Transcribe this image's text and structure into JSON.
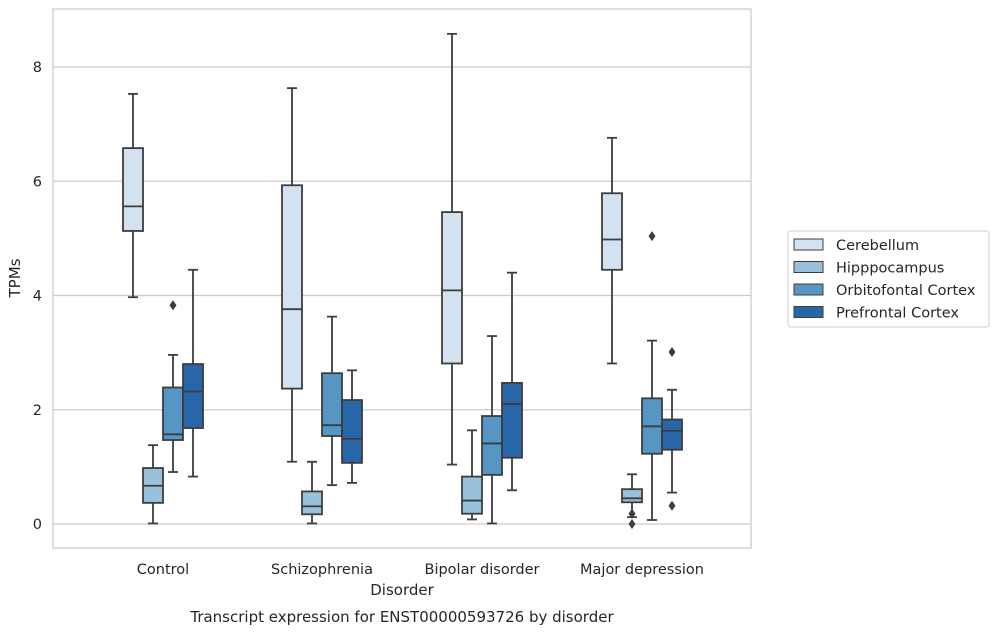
{
  "chart_data": {
    "type": "box",
    "title": "Transcript expression for ENST00000593726 by disorder",
    "xlabel": "Disorder",
    "ylabel": "TPMs",
    "ylim": [
      -0.4,
      9.1
    ],
    "yticks": [
      0,
      2,
      4,
      6,
      8
    ],
    "grid": "horizontal",
    "legend_position": "right",
    "categories": [
      "Control",
      "Schizophrenia",
      "Bipolar disorder",
      "Major depression"
    ],
    "series": [
      {
        "name": "Cerebellum",
        "color": "#d3e2f0",
        "boxes": [
          {
            "whisker_low": 3.97,
            "q1": 5.13,
            "median": 5.56,
            "q3": 6.58,
            "whisker_high": 7.53,
            "outliers": []
          },
          {
            "whisker_low": 1.09,
            "q1": 2.37,
            "median": 3.76,
            "q3": 5.93,
            "whisker_high": 7.63,
            "outliers": []
          },
          {
            "whisker_low": 1.04,
            "q1": 2.81,
            "median": 4.09,
            "q3": 5.46,
            "whisker_high": 8.58,
            "outliers": []
          },
          {
            "whisker_low": 2.81,
            "q1": 4.45,
            "median": 4.98,
            "q3": 5.79,
            "whisker_high": 6.76,
            "outliers": []
          }
        ]
      },
      {
        "name": "Hipppocampus",
        "color": "#9ac1dc",
        "boxes": [
          {
            "whisker_low": 0.01,
            "q1": 0.37,
            "median": 0.67,
            "q3": 0.98,
            "whisker_high": 1.38,
            "outliers": []
          },
          {
            "whisker_low": 0.01,
            "q1": 0.17,
            "median": 0.31,
            "q3": 0.57,
            "whisker_high": 1.09,
            "outliers": []
          },
          {
            "whisker_low": 0.08,
            "q1": 0.18,
            "median": 0.41,
            "q3": 0.83,
            "whisker_high": 1.64,
            "outliers": []
          },
          {
            "whisker_low": 0.12,
            "q1": 0.38,
            "median": 0.45,
            "q3": 0.61,
            "whisker_high": 0.87,
            "outliers": [
              0.18,
              0.0
            ]
          }
        ]
      },
      {
        "name": "Orbitofontal Cortex",
        "color": "#5596c5",
        "boxes": [
          {
            "whisker_low": 0.91,
            "q1": 1.47,
            "median": 1.57,
            "q3": 2.39,
            "whisker_high": 2.96,
            "outliers": [
              3.83
            ]
          },
          {
            "whisker_low": 0.68,
            "q1": 1.54,
            "median": 1.73,
            "q3": 2.64,
            "whisker_high": 3.63,
            "outliers": []
          },
          {
            "whisker_low": 0.01,
            "q1": 0.86,
            "median": 1.41,
            "q3": 1.89,
            "whisker_high": 3.29,
            "outliers": []
          },
          {
            "whisker_low": 0.07,
            "q1": 1.23,
            "median": 1.71,
            "q3": 2.2,
            "whisker_high": 3.21,
            "outliers": [
              5.04
            ]
          }
        ]
      },
      {
        "name": "Prefrontal Cortex",
        "color": "#2766a8",
        "boxes": [
          {
            "whisker_low": 0.83,
            "q1": 1.68,
            "median": 2.32,
            "q3": 2.8,
            "whisker_high": 4.45,
            "outliers": []
          },
          {
            "whisker_low": 0.72,
            "q1": 1.07,
            "median": 1.49,
            "q3": 2.17,
            "whisker_high": 2.69,
            "outliers": []
          },
          {
            "whisker_low": 0.59,
            "q1": 1.16,
            "median": 2.1,
            "q3": 2.47,
            "whisker_high": 4.4,
            "outliers": []
          },
          {
            "whisker_low": 0.55,
            "q1": 1.3,
            "median": 1.63,
            "q3": 1.83,
            "whisker_high": 2.35,
            "outliers": [
              3.01,
              0.32
            ]
          }
        ]
      }
    ]
  }
}
